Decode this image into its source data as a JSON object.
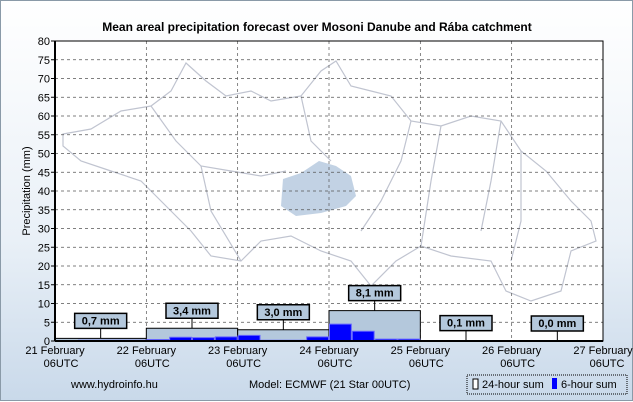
{
  "chart_data": {
    "type": "bar",
    "title": "Mean areal precipitation forecast over Mosoni Danube and Rába catchment",
    "ylabel": "Precipitation (mm)",
    "ylim": [
      0,
      80
    ],
    "yticks": [
      0,
      5,
      10,
      15,
      20,
      25,
      30,
      35,
      40,
      45,
      50,
      55,
      60,
      65,
      70,
      75,
      80
    ],
    "xticks": [
      [
        "21 February",
        "06UTC"
      ],
      [
        "22 February",
        "06UTC"
      ],
      [
        "23 February",
        "06UTC"
      ],
      [
        "24 February",
        "06UTC"
      ],
      [
        "25 February",
        "06UTC"
      ],
      [
        "26 February",
        "06UTC"
      ],
      [
        "27 February",
        "06UTC"
      ]
    ],
    "series": [
      {
        "name": "24-hour sum",
        "values": [
          0.7,
          3.4,
          3.0,
          8.1,
          0.1,
          0.0
        ],
        "labels": [
          "0,7 mm",
          "3,4 mm",
          "3,0 mm",
          "8,1 mm",
          "0,1 mm",
          "0,0 mm"
        ],
        "color": "#b4c8dc"
      },
      {
        "name": "6-hour sum",
        "values": [
          0.1,
          0.2,
          0.2,
          0.2,
          0.4,
          1.0,
          0.9,
          1.1,
          1.5,
          0.2,
          0.2,
          1.1,
          4.5,
          2.6,
          0.5,
          0.5,
          0.1,
          0,
          0,
          0,
          0,
          0,
          0,
          0
        ],
        "color": "#0000ff"
      }
    ],
    "grid": true,
    "legend": "bottom-right"
  },
  "footer": {
    "source": "www.hydroinfo.hu",
    "model": "Model: ECMWF (21  Star 00UTC)"
  }
}
